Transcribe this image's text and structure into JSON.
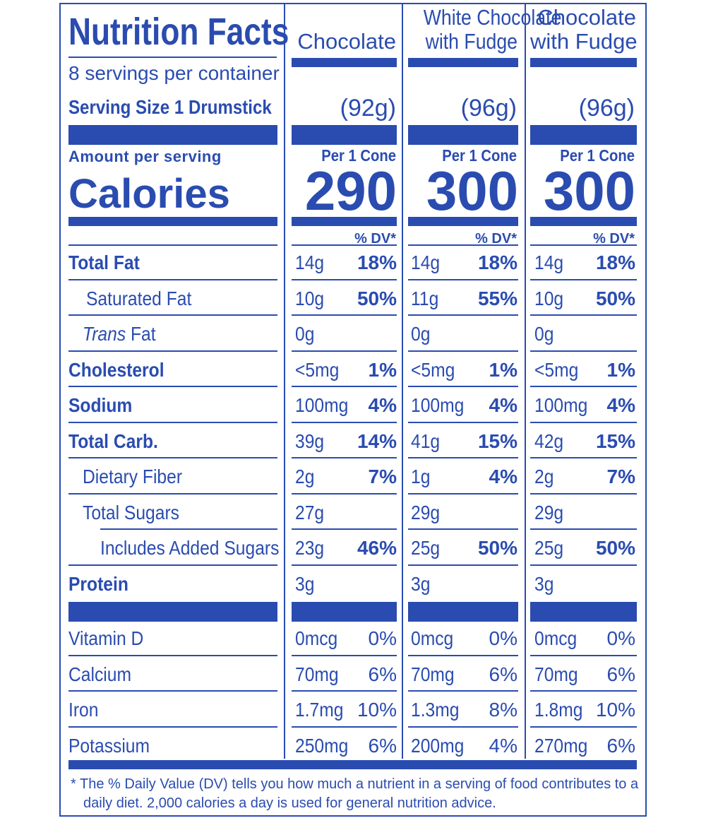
{
  "label": {
    "title": "Nutrition Facts",
    "servings_per_container": "8 servings per container",
    "serving_size": "Serving Size 1 Drumstick",
    "amount_per_serving": "Amount per serving",
    "calories_label": "Calories",
    "dv_header": "% DV*"
  },
  "products": [
    {
      "name_line1": "",
      "name_line2": "Chocolate",
      "serving_grams": "(92g)",
      "per": "Per 1 Cone",
      "calories": "290"
    },
    {
      "name_line1": "White Chocolate",
      "name_line2": "with Fudge",
      "serving_grams": "(96g)",
      "per": "Per 1 Cone",
      "calories": "300"
    },
    {
      "name_line1": "Chocolate",
      "name_line2": "with Fudge",
      "serving_grams": "(96g)",
      "per": "Per 1 Cone",
      "calories": "300"
    }
  ],
  "nutrients": [
    {
      "label": "Total Fat",
      "values": [
        [
          "14g",
          "18%"
        ],
        [
          "14g",
          "18%"
        ],
        [
          "14g",
          "18%"
        ]
      ]
    },
    {
      "label": "Saturated Fat",
      "values": [
        [
          "10g",
          "50%"
        ],
        [
          "11g",
          "55%"
        ],
        [
          "10g",
          "50%"
        ]
      ]
    },
    {
      "label_em": "Trans",
      "label_rest": " Fat",
      "values": [
        [
          "0g",
          ""
        ],
        [
          "0g",
          ""
        ],
        [
          "0g",
          ""
        ]
      ]
    },
    {
      "label": "Cholesterol",
      "values": [
        [
          "<5mg",
          "1%"
        ],
        [
          "<5mg",
          "1%"
        ],
        [
          "<5mg",
          "1%"
        ]
      ]
    },
    {
      "label": "Sodium",
      "values": [
        [
          "100mg",
          "4%"
        ],
        [
          "100mg",
          "4%"
        ],
        [
          "100mg",
          "4%"
        ]
      ]
    },
    {
      "label": "Total Carb.",
      "values": [
        [
          "39g",
          "14%"
        ],
        [
          "41g",
          "15%"
        ],
        [
          "42g",
          "15%"
        ]
      ]
    },
    {
      "label": "Dietary Fiber",
      "values": [
        [
          "2g",
          "7%"
        ],
        [
          "1g",
          "4%"
        ],
        [
          "2g",
          "7%"
        ]
      ]
    },
    {
      "label": "Total Sugars",
      "values": [
        [
          "27g",
          ""
        ],
        [
          "29g",
          ""
        ],
        [
          "29g",
          ""
        ]
      ]
    },
    {
      "label": "Includes Added Sugars",
      "values": [
        [
          "23g",
          "46%"
        ],
        [
          "25g",
          "50%"
        ],
        [
          "25g",
          "50%"
        ]
      ]
    },
    {
      "label": "Protein",
      "values": [
        [
          "3g",
          ""
        ],
        [
          "3g",
          ""
        ],
        [
          "3g",
          ""
        ]
      ]
    }
  ],
  "vitamins": [
    {
      "label": "Vitamin D",
      "values": [
        [
          "0mcg",
          "0%"
        ],
        [
          "0mcg",
          "0%"
        ],
        [
          "0mcg",
          "0%"
        ]
      ]
    },
    {
      "label": "Calcium",
      "values": [
        [
          "70mg",
          "6%"
        ],
        [
          "70mg",
          "6%"
        ],
        [
          "70mg",
          "6%"
        ]
      ]
    },
    {
      "label": "Iron",
      "values": [
        [
          "1.7mg",
          "10%"
        ],
        [
          "1.3mg",
          "8%"
        ],
        [
          "1.8mg",
          "10%"
        ]
      ]
    },
    {
      "label": "Potassium",
      "values": [
        [
          "250mg",
          "6%"
        ],
        [
          "200mg",
          "4%"
        ],
        [
          "270mg",
          "6%"
        ]
      ]
    }
  ],
  "footnote": {
    "line1": "* The % Daily Value (DV) tells you how much a nutrient in a serving of food contributes to a",
    "line2": "daily diet. 2,000 calories a day is used for general nutrition advice."
  },
  "colors": {
    "ink": "#2a4cb0",
    "background": "#ffffff"
  }
}
